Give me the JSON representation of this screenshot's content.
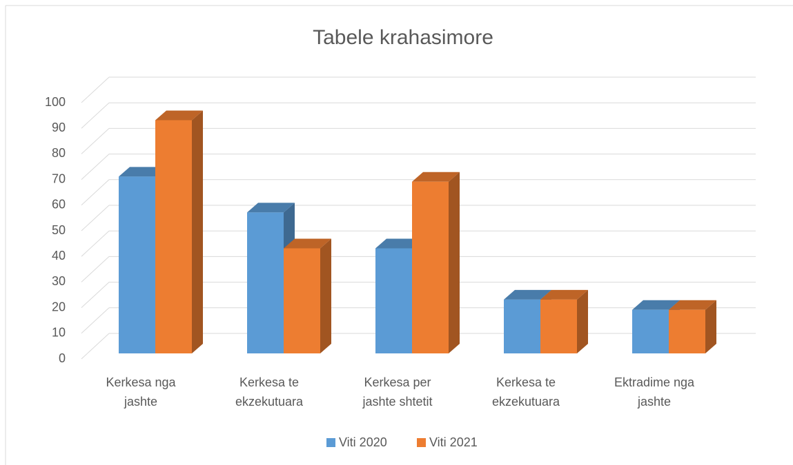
{
  "chart_data": {
    "type": "bar3d",
    "title": "Tabele krahasimore",
    "categories": [
      "Kerkesa nga jashte",
      "Kerkesa te ekzekutuara",
      "Kerkesa per jashte shtetit",
      "Kerkesa te ekzekutuara",
      "Ektradime nga jashte"
    ],
    "series": [
      {
        "name": "Viti 2020",
        "color": "#5b9bd5",
        "values": [
          69,
          55,
          41,
          21,
          17
        ]
      },
      {
        "name": "Viti 2021",
        "color": "#ed7d31",
        "values": [
          91,
          41,
          67,
          21,
          17
        ]
      }
    ],
    "ylim": [
      0,
      100
    ],
    "yticks": [
      0,
      10,
      20,
      30,
      40,
      50,
      60,
      70,
      80,
      90,
      100
    ],
    "grid": true,
    "legend": "bottom"
  }
}
